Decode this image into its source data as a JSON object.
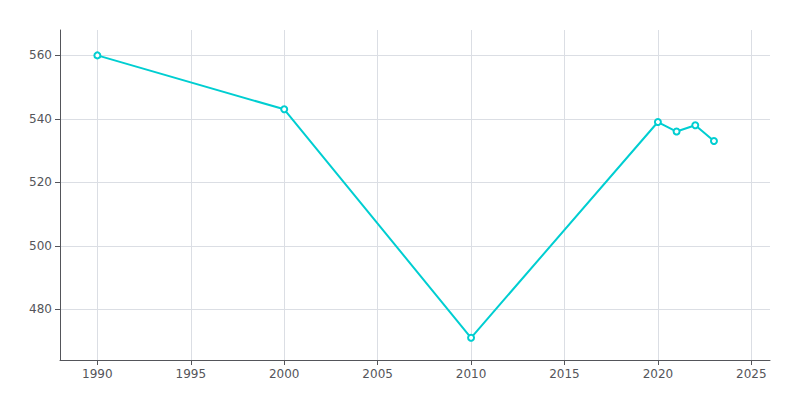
{
  "chart_data": {
    "type": "line",
    "x": [
      1990,
      2000,
      2010,
      2020,
      2021,
      2022,
      2023
    ],
    "values": [
      560,
      543,
      471,
      539,
      536,
      538,
      533
    ],
    "color": "#00CED1",
    "xlim": [
      1988,
      2026
    ],
    "ylim": [
      464,
      568
    ],
    "xticks": [
      1990,
      1995,
      2000,
      2005,
      2010,
      2015,
      2020,
      2025
    ],
    "yticks": [
      480,
      500,
      520,
      540,
      560
    ],
    "grid": true
  }
}
